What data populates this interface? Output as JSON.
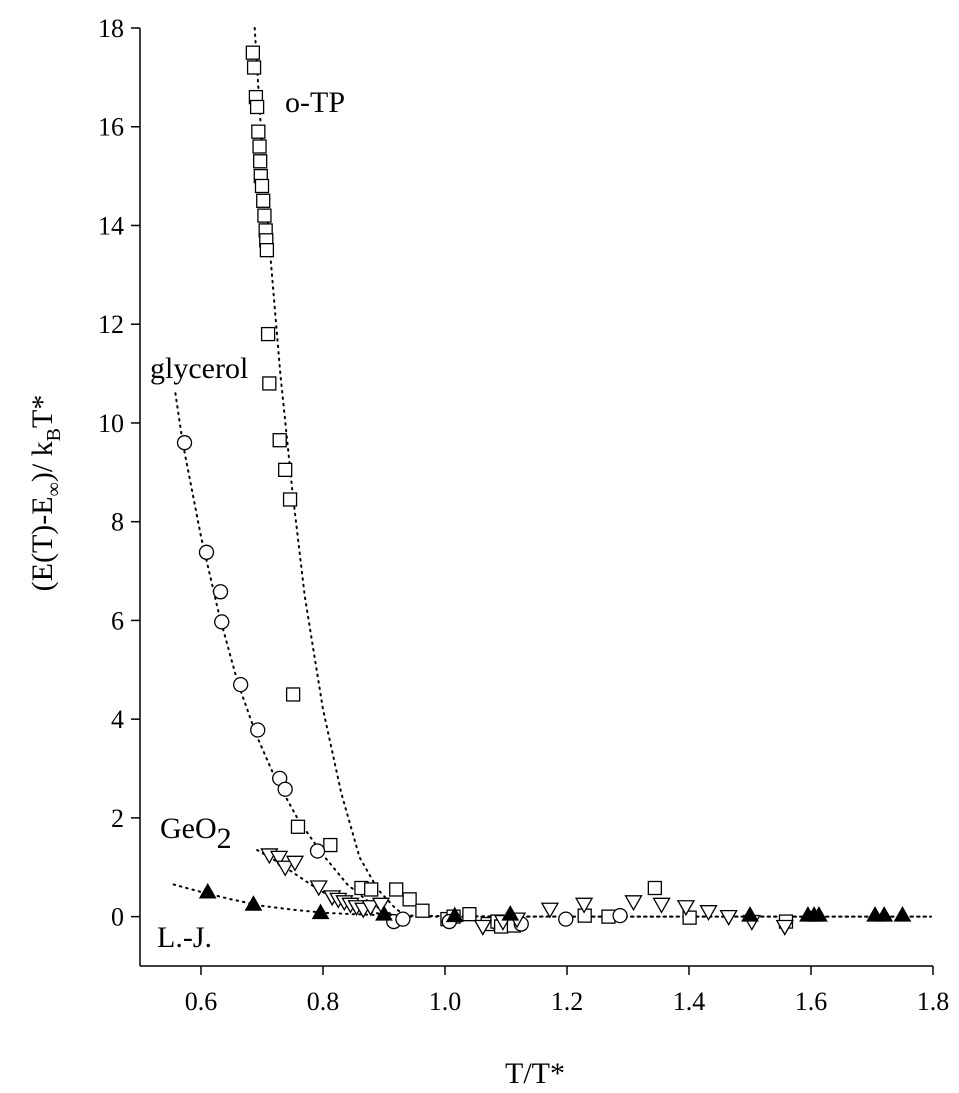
{
  "chart_data": {
    "type": "scatter",
    "xlabel": "T/T*",
    "ylabel": "(E(T)-E∞)/ kBT*",
    "ylabel_parts": {
      "a": "(E(T)-E",
      "a_sub": "∞",
      "b": ")/ k",
      "b_sub": "B",
      "c": "T*"
    },
    "xlim": [
      0.5,
      1.8
    ],
    "ylim": [
      -1,
      18
    ],
    "xticks": [
      0.6,
      0.8,
      1.0,
      1.2,
      1.4,
      1.6,
      1.8
    ],
    "xtick_labels": [
      "0.6",
      "0.8",
      "1.0",
      "1.2",
      "1.4",
      "1.6",
      "1.8"
    ],
    "yticks": [
      0,
      2,
      4,
      6,
      8,
      10,
      12,
      14,
      16,
      18
    ],
    "ytick_labels": [
      "0",
      "2",
      "4",
      "6",
      "8",
      "10",
      "12",
      "14",
      "16",
      "18"
    ],
    "grid": false,
    "legend": "none",
    "series": [
      {
        "name": "o-TP",
        "marker": "square",
        "x": [
          0.685,
          0.687,
          0.69,
          0.692,
          0.694,
          0.696,
          0.697,
          0.698,
          0.7,
          0.702,
          0.704,
          0.706,
          0.707,
          0.708,
          0.71,
          0.712,
          0.729,
          0.738,
          0.746,
          0.751,
          0.759,
          0.812,
          0.863,
          0.879,
          0.92,
          0.942,
          0.963,
          1.04,
          1.004,
          1.014,
          1.07,
          1.086,
          1.092,
          1.113,
          1.229,
          1.268,
          1.344,
          1.401,
          1.559
        ],
        "y": [
          17.5,
          17.2,
          16.6,
          16.4,
          15.9,
          15.6,
          15.3,
          15.0,
          14.8,
          14.5,
          14.2,
          13.9,
          13.7,
          13.5,
          11.8,
          10.8,
          9.65,
          9.05,
          8.45,
          4.5,
          1.82,
          1.45,
          0.58,
          0.55,
          0.55,
          0.35,
          0.12,
          0.05,
          -0.05,
          0.0,
          -0.15,
          -0.1,
          -0.2,
          -0.18,
          0.02,
          0.0,
          0.58,
          -0.02,
          -0.1
        ],
        "fit_x": [
          0.688,
          0.7,
          0.713,
          0.73,
          0.75,
          0.77,
          0.8,
          0.83,
          0.86,
          0.89,
          0.92,
          0.94
        ],
        "fit_y": [
          18.0,
          15.6,
          13.5,
          11.0,
          8.6,
          6.5,
          4.2,
          2.5,
          1.2,
          0.55,
          0.15,
          0.0
        ]
      },
      {
        "name": "glycerol",
        "marker": "circle",
        "x": [
          0.573,
          0.609,
          0.632,
          0.634,
          0.665,
          0.693,
          0.729,
          0.738,
          0.791,
          0.916,
          0.931,
          1.007,
          1.125,
          1.198,
          1.287
        ],
        "y": [
          9.6,
          7.38,
          6.58,
          5.97,
          4.7,
          3.78,
          2.8,
          2.58,
          1.33,
          -0.1,
          -0.05,
          -0.1,
          -0.15,
          -0.05,
          0.02
        ],
        "fit_x": [
          0.558,
          0.57,
          0.6,
          0.63,
          0.66,
          0.69,
          0.72,
          0.76,
          0.8,
          0.84,
          0.88,
          0.92
        ],
        "fit_y": [
          10.6,
          9.6,
          7.7,
          6.1,
          4.75,
          3.7,
          2.85,
          1.95,
          1.25,
          0.65,
          0.25,
          0.0
        ]
      },
      {
        "name": "GeO2",
        "label_parts": {
          "a": "GeO",
          "sub": "2"
        },
        "marker": "triangle-down",
        "x": [
          0.712,
          0.728,
          0.738,
          0.754,
          0.793,
          0.815,
          0.825,
          0.835,
          0.845,
          0.855,
          0.866,
          0.878,
          0.895,
          1.062,
          1.095,
          1.118,
          1.172,
          1.228,
          1.309,
          1.355,
          1.395,
          1.432,
          1.465,
          1.503,
          1.557
        ],
        "y": [
          1.25,
          1.2,
          1.0,
          1.1,
          0.6,
          0.4,
          0.35,
          0.3,
          0.25,
          0.2,
          0.15,
          0.2,
          0.25,
          -0.2,
          -0.1,
          -0.05,
          0.15,
          0.25,
          0.3,
          0.25,
          0.2,
          0.1,
          0.0,
          -0.1,
          -0.2
        ],
        "fit_x": [
          0.692,
          0.72,
          0.75,
          0.78,
          0.81,
          0.84,
          0.87,
          0.9,
          0.93
        ],
        "fit_y": [
          1.35,
          1.15,
          0.9,
          0.65,
          0.42,
          0.25,
          0.12,
          0.04,
          0.0
        ]
      },
      {
        "name": "L.-J.",
        "marker": "triangle-up-filled",
        "x": [
          0.611,
          0.686,
          0.796,
          0.9,
          1.016,
          1.107,
          1.5,
          1.595,
          1.605,
          1.613,
          1.705,
          1.72,
          1.75
        ],
        "y": [
          0.5,
          0.25,
          0.08,
          0.05,
          0.02,
          0.05,
          0.03,
          0.03,
          0.03,
          0.03,
          0.03,
          0.03,
          0.03
        ],
        "fit_x": [
          0.555,
          0.6,
          0.65,
          0.7,
          0.75,
          0.8,
          0.85,
          0.9,
          1.0,
          1.2,
          1.4,
          1.6,
          1.79
        ],
        "fit_y": [
          0.65,
          0.5,
          0.35,
          0.22,
          0.14,
          0.08,
          0.05,
          0.03,
          0.01,
          0.0,
          0.0,
          0.0,
          0.0
        ]
      }
    ]
  }
}
